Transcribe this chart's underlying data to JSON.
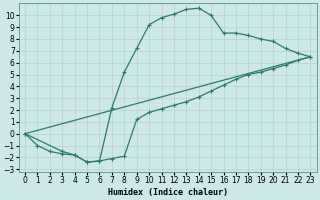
{
  "xlabel": "Humidex (Indice chaleur)",
  "background_color": "#cce8e8",
  "grid_color": "#c8dada",
  "line_color": "#2e7b6e",
  "xlim": [
    -0.5,
    23.5
  ],
  "ylim": [
    -3.2,
    11.0
  ],
  "xticks": [
    0,
    1,
    2,
    3,
    4,
    5,
    6,
    7,
    8,
    9,
    10,
    11,
    12,
    13,
    14,
    15,
    16,
    17,
    18,
    19,
    20,
    21,
    22,
    23
  ],
  "yticks": [
    -3,
    -2,
    -1,
    0,
    1,
    2,
    3,
    4,
    5,
    6,
    7,
    8,
    9,
    10
  ],
  "curve1_x": [
    0,
    1,
    2,
    3,
    4,
    5,
    6,
    7,
    8,
    9,
    10,
    11,
    12,
    13,
    14,
    15,
    16,
    17,
    18,
    19,
    20,
    21,
    22,
    23
  ],
  "curve1_y": [
    0,
    -1,
    -1.5,
    -1.7,
    -1.8,
    -2.4,
    -2.3,
    2.2,
    5.2,
    7.2,
    9.2,
    9.8,
    10.1,
    10.5,
    10.6,
    10.0,
    8.5,
    8.5,
    8.3,
    8.0,
    7.8,
    7.2,
    6.8,
    6.5
  ],
  "curve2_x": [
    0,
    3,
    4,
    5,
    6,
    7,
    8,
    9,
    10,
    11,
    12,
    13,
    14,
    15,
    16,
    17,
    18,
    19,
    20,
    21,
    22,
    23
  ],
  "curve2_y": [
    0,
    -1.5,
    -1.8,
    -2.4,
    -2.3,
    -2.1,
    -1.9,
    1.2,
    1.8,
    2.1,
    2.4,
    2.7,
    3.1,
    3.6,
    4.1,
    4.6,
    5.0,
    5.2,
    5.5,
    5.8,
    6.2,
    6.5
  ],
  "line_x": [
    0,
    23
  ],
  "line_y": [
    0,
    6.5
  ],
  "fontsize_axis": 6,
  "fontsize_ticks": 5.5
}
